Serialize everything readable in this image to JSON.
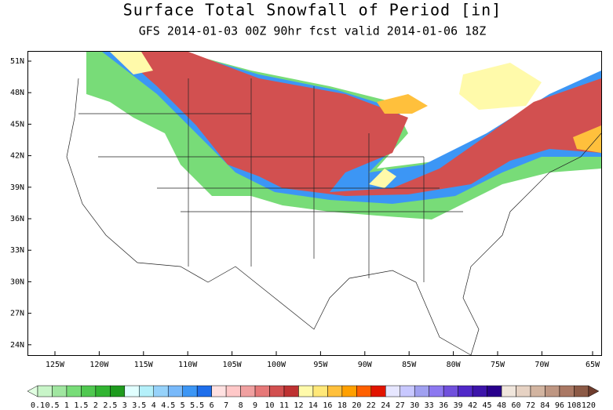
{
  "header": {
    "title": "Surface Total Snowfall of Period [in]",
    "subtitle": "GFS 2014-01-03 00Z 90hr fcst valid 2014-01-06 18Z"
  },
  "map": {
    "lat_labels": [
      "51N",
      "48N",
      "45N",
      "42N",
      "39N",
      "36N",
      "33N",
      "30N",
      "27N",
      "24N"
    ],
    "lon_labels": [
      "125W",
      "120W",
      "115W",
      "110W",
      "105W",
      "100W",
      "95W",
      "90W",
      "85W",
      "80W",
      "75W",
      "70W",
      "65W"
    ]
  },
  "colorbar": {
    "labels": [
      "0.1",
      "0.5",
      "1",
      "1.5",
      "2",
      "2.5",
      "3",
      "3.5",
      "4",
      "4.5",
      "5",
      "5.5",
      "6",
      "7",
      "8",
      "9",
      "10",
      "11",
      "12",
      "14",
      "16",
      "18",
      "20",
      "22",
      "24",
      "27",
      "30",
      "33",
      "36",
      "39",
      "42",
      "45",
      "48",
      "60",
      "72",
      "84",
      "96",
      "108",
      "120"
    ],
    "colors": [
      "#e1ffe1",
      "#c8f5c8",
      "#a0e6a0",
      "#78dc78",
      "#50c850",
      "#32b432",
      "#1e9b1e",
      "#e1ffff",
      "#b4f0fa",
      "#96d2fa",
      "#78b9fa",
      "#3c96f5",
      "#1e6eeb",
      "#ffe1e1",
      "#ffc8c8",
      "#f0a0a0",
      "#e67878",
      "#d25050",
      "#be3232",
      "#fffaaa",
      "#ffe878",
      "#ffc03c",
      "#ffa000",
      "#ff6000",
      "#e11400",
      "#e6e6ff",
      "#c8c8ff",
      "#a0a0f0",
      "#8c78f0",
      "#7050dc",
      "#5028c8",
      "#3c14aa",
      "#28008c",
      "#f0e6dc",
      "#e6d2c3",
      "#d2b4a0",
      "#be9682",
      "#aa7864",
      "#8c5a46",
      "#6e3c2d"
    ]
  }
}
